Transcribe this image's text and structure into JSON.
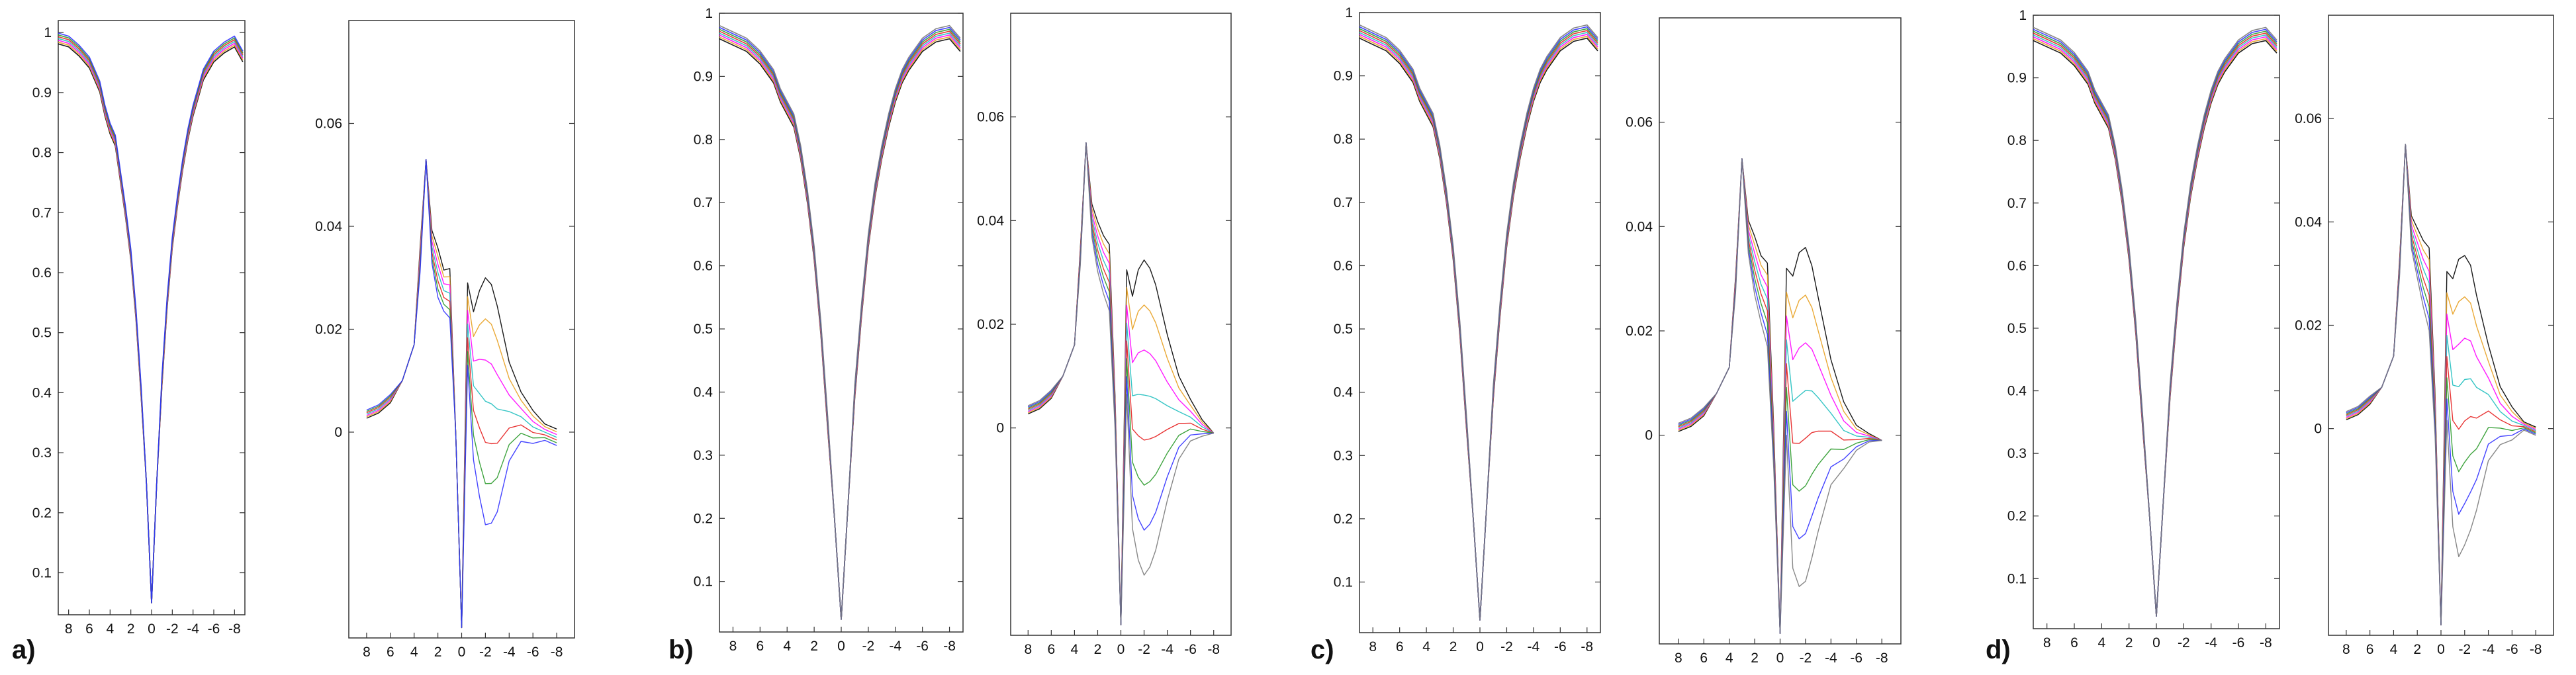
{
  "chart_data": [
    {
      "type": "line",
      "panel_label": "a)",
      "series_colors": [
        "#000000",
        "#e8a020",
        "#ff00ff",
        "#1fbfbf",
        "#e62020",
        "#2a9a2a",
        "#3030ff"
      ],
      "profile": {
        "x_ticks": [
          "8",
          "6",
          "4",
          "2",
          "0",
          "-2",
          "-4",
          "-6",
          "-8"
        ],
        "y_ticks": [
          "0.1",
          "0.2",
          "0.3",
          "0.4",
          "0.5",
          "0.6",
          "0.7",
          "0.8",
          "0.9",
          "1"
        ],
        "xlim": [
          9,
          -9
        ],
        "ylim": [
          0.03,
          1.02
        ],
        "x": [
          9,
          8,
          7,
          6,
          5,
          4.5,
          4,
          3.5,
          3,
          2.5,
          2,
          1.5,
          1,
          0.5,
          0,
          -0.5,
          -1,
          -1.5,
          -2,
          -2.5,
          -3,
          -3.5,
          -4,
          -4.5,
          -5,
          -6,
          -7,
          -8,
          -8.8
        ],
        "y": [
          0.99,
          0.985,
          0.97,
          0.95,
          0.91,
          0.87,
          0.84,
          0.82,
          0.76,
          0.7,
          0.63,
          0.53,
          0.4,
          0.25,
          0.05,
          0.25,
          0.42,
          0.55,
          0.65,
          0.72,
          0.78,
          0.83,
          0.87,
          0.9,
          0.93,
          0.96,
          0.975,
          0.985,
          0.96
        ]
      },
      "difference": {
        "x_ticks": [
          "8",
          "6",
          "4",
          "2",
          "0",
          "-2",
          "-4",
          "-6",
          "-8"
        ],
        "y_ticks": [
          "0",
          "0.02",
          "0.04",
          "0.06"
        ],
        "xlim": [
          9.5,
          -9.5
        ],
        "ylim": [
          -0.04,
          0.08
        ],
        "x": [
          8,
          7,
          6,
          5,
          4,
          3.5,
          3,
          2.5,
          2,
          1.5,
          1,
          0.5,
          0,
          -0.5,
          -1,
          -1.5,
          -2,
          -2.5,
          -3,
          -4,
          -5,
          -6,
          -7,
          -8
        ],
        "base": [
          0.003,
          0.004,
          0.006,
          0.01,
          0.017,
          0.035,
          0.053,
          0.038,
          0.034,
          0.03,
          0.03,
          0.0,
          -0.038,
          0.026,
          0.018,
          0.02,
          0.021,
          0.02,
          0.017,
          0.01,
          0.006,
          0.003,
          0.001,
          0.0
        ],
        "spread": [
          -0.001,
          -0.001,
          -0.001,
          0.0,
          0.0,
          0.003,
          0.0,
          0.004,
          0.006,
          0.005,
          0.006,
          0.0,
          0.0,
          0.01,
          0.018,
          0.025,
          0.03,
          0.029,
          0.025,
          0.012,
          0.006,
          0.004,
          0.002,
          0.002
        ]
      }
    },
    {
      "type": "line",
      "panel_label": "b)",
      "series_colors": [
        "#000000",
        "#e8a020",
        "#ff00ff",
        "#1fbfbf",
        "#e62020",
        "#2a9a2a",
        "#3030ff",
        "#7a7a7a"
      ],
      "profile": {
        "x_ticks": [
          "8",
          "6",
          "4",
          "2",
          "0",
          "-2",
          "-4",
          "-6",
          "-8"
        ],
        "y_ticks": [
          "0.1",
          "0.2",
          "0.3",
          "0.4",
          "0.5",
          "0.6",
          "0.7",
          "0.8",
          "0.9",
          "1"
        ],
        "xlim": [
          9,
          -9
        ],
        "ylim": [
          0.02,
          1.0
        ],
        "x": [
          9,
          8,
          7,
          6,
          5,
          4.5,
          4,
          3.5,
          3,
          2.5,
          2,
          1.5,
          1,
          0.5,
          0,
          -0.5,
          -1,
          -1.5,
          -2,
          -2.5,
          -3,
          -3.5,
          -4,
          -4.5,
          -5,
          -6,
          -7,
          -8,
          -8.8
        ],
        "y": [
          0.97,
          0.96,
          0.95,
          0.93,
          0.9,
          0.87,
          0.85,
          0.83,
          0.78,
          0.71,
          0.62,
          0.5,
          0.35,
          0.2,
          0.04,
          0.22,
          0.4,
          0.53,
          0.64,
          0.72,
          0.78,
          0.83,
          0.87,
          0.9,
          0.92,
          0.95,
          0.965,
          0.97,
          0.95
        ]
      },
      "difference": {
        "x_ticks": [
          "8",
          "6",
          "4",
          "2",
          "0",
          "-2",
          "-4",
          "-6",
          "-8"
        ],
        "y_ticks": [
          "0",
          "0.02",
          "0.04",
          "0.06"
        ],
        "xlim": [
          9.5,
          -9.5
        ],
        "ylim": [
          -0.04,
          0.08
        ],
        "x": [
          8,
          7,
          6,
          5,
          4,
          3.5,
          3,
          2.5,
          2,
          1.5,
          1,
          0.5,
          0,
          -0.5,
          -1,
          -1.5,
          -2,
          -2.5,
          -3,
          -4,
          -5,
          -6,
          -7,
          -8
        ],
        "base": [
          0.003,
          0.004,
          0.006,
          0.01,
          0.016,
          0.034,
          0.055,
          0.042,
          0.038,
          0.035,
          0.033,
          0.005,
          -0.038,
          0.026,
          0.017,
          0.02,
          0.021,
          0.02,
          0.018,
          0.012,
          0.007,
          0.004,
          0.001,
          -0.001
        ],
        "spread": [
          -0.001,
          -0.001,
          -0.001,
          0.0,
          0.0,
          0.002,
          0.0,
          0.004,
          0.006,
          0.007,
          0.008,
          0.004,
          0.0,
          0.015,
          0.028,
          0.035,
          0.038,
          0.036,
          0.032,
          0.02,
          0.01,
          0.005,
          0.002,
          0.0
        ]
      }
    },
    {
      "type": "line",
      "panel_label": "c)",
      "series_colors": [
        "#000000",
        "#e8a020",
        "#ff00ff",
        "#1fbfbf",
        "#e62020",
        "#2a9a2a",
        "#3030ff",
        "#7a7a7a"
      ],
      "profile": {
        "x_ticks": [
          "8",
          "6",
          "4",
          "2",
          "0",
          "-2",
          "-4",
          "-6",
          "-8"
        ],
        "y_ticks": [
          "0.1",
          "0.2",
          "0.3",
          "0.4",
          "0.5",
          "0.6",
          "0.7",
          "0.8",
          "0.9",
          "1"
        ],
        "xlim": [
          9,
          -9
        ],
        "ylim": [
          0.02,
          1.0
        ],
        "x": [
          9,
          8,
          7,
          6,
          5,
          4.5,
          4,
          3.5,
          3,
          2.5,
          2,
          1.5,
          1,
          0.5,
          0,
          -0.5,
          -1,
          -1.5,
          -2,
          -2.5,
          -3,
          -3.5,
          -4,
          -4.5,
          -5,
          -6,
          -7,
          -8,
          -8.8
        ],
        "y": [
          0.97,
          0.96,
          0.95,
          0.93,
          0.9,
          0.87,
          0.85,
          0.83,
          0.78,
          0.71,
          0.62,
          0.5,
          0.35,
          0.2,
          0.04,
          0.22,
          0.4,
          0.53,
          0.64,
          0.72,
          0.78,
          0.83,
          0.87,
          0.9,
          0.92,
          0.95,
          0.965,
          0.97,
          0.95
        ]
      },
      "difference": {
        "x_ticks": [
          "8",
          "6",
          "4",
          "2",
          "0",
          "-2",
          "-4",
          "-6",
          "-8"
        ],
        "y_ticks": [
          "0",
          "0.02",
          "0.04",
          "0.06"
        ],
        "xlim": [
          9.5,
          -9.5
        ],
        "ylim": [
          -0.04,
          0.08
        ],
        "x": [
          8,
          7,
          6,
          5,
          4,
          3.5,
          3,
          2.5,
          2,
          1.5,
          1,
          0.5,
          0,
          -0.5,
          -1,
          -1.5,
          -2,
          -2.5,
          -3,
          -4,
          -5,
          -6,
          -7,
          -8
        ],
        "base": [
          0.001,
          0.002,
          0.004,
          0.008,
          0.013,
          0.03,
          0.053,
          0.04,
          0.036,
          0.032,
          0.03,
          0.0,
          -0.038,
          0.026,
          0.02,
          0.023,
          0.024,
          0.022,
          0.018,
          0.01,
          0.004,
          0.001,
          0.0,
          -0.001
        ],
        "spread": [
          -0.001,
          -0.001,
          -0.001,
          0.0,
          0.0,
          0.002,
          0.0,
          0.004,
          0.007,
          0.008,
          0.01,
          0.005,
          0.0,
          0.02,
          0.035,
          0.04,
          0.04,
          0.035,
          0.028,
          0.015,
          0.008,
          0.003,
          0.001,
          0.0
        ]
      }
    },
    {
      "type": "line",
      "panel_label": "d)",
      "series_colors": [
        "#000000",
        "#e8a020",
        "#ff00ff",
        "#1fbfbf",
        "#e62020",
        "#2a9a2a",
        "#3030ff",
        "#7a7a7a"
      ],
      "profile": {
        "x_ticks": [
          "8",
          "6",
          "4",
          "2",
          "0",
          "-2",
          "-4",
          "-6",
          "-8"
        ],
        "y_ticks": [
          "0.1",
          "0.2",
          "0.3",
          "0.4",
          "0.5",
          "0.6",
          "0.7",
          "0.8",
          "0.9",
          "1"
        ],
        "xlim": [
          9,
          -9
        ],
        "ylim": [
          0.02,
          1.0
        ],
        "x": [
          9,
          8,
          7,
          6,
          5,
          4.5,
          4,
          3.5,
          3,
          2.5,
          2,
          1.5,
          1,
          0.5,
          0,
          -0.5,
          -1,
          -1.5,
          -2,
          -2.5,
          -3,
          -3.5,
          -4,
          -4.5,
          -5,
          -6,
          -7,
          -8,
          -8.8
        ],
        "y": [
          0.97,
          0.96,
          0.95,
          0.93,
          0.9,
          0.87,
          0.85,
          0.83,
          0.78,
          0.71,
          0.62,
          0.5,
          0.35,
          0.2,
          0.04,
          0.22,
          0.4,
          0.53,
          0.64,
          0.72,
          0.78,
          0.83,
          0.87,
          0.9,
          0.92,
          0.95,
          0.965,
          0.97,
          0.95
        ]
      },
      "difference": {
        "x_ticks": [
          "8",
          "6",
          "4",
          "2",
          "0",
          "-2",
          "-4",
          "-6",
          "-8"
        ],
        "y_ticks": [
          "0",
          "0.02",
          "0.04",
          "0.06"
        ],
        "xlim": [
          9.5,
          -9.5
        ],
        "ylim": [
          -0.04,
          0.08
        ],
        "x": [
          8,
          7,
          6,
          5,
          4,
          3.5,
          3,
          2.5,
          2,
          1.5,
          1,
          0.5,
          0,
          -0.5,
          -1,
          -1.5,
          -2,
          -2.5,
          -3,
          -4,
          -5,
          -6,
          -7,
          -8
        ],
        "base": [
          0.002,
          0.003,
          0.005,
          0.008,
          0.014,
          0.032,
          0.055,
          0.04,
          0.037,
          0.034,
          0.032,
          0.005,
          -0.038,
          0.025,
          0.02,
          0.022,
          0.023,
          0.022,
          0.018,
          0.012,
          0.006,
          0.003,
          0.001,
          0.0
        ],
        "spread": [
          -0.001,
          -0.001,
          -0.001,
          0.0,
          0.0,
          0.002,
          0.0,
          0.004,
          0.006,
          0.008,
          0.01,
          0.005,
          0.0,
          0.018,
          0.03,
          0.036,
          0.035,
          0.032,
          0.026,
          0.014,
          0.007,
          0.004,
          0.001,
          0.001
        ]
      }
    }
  ]
}
